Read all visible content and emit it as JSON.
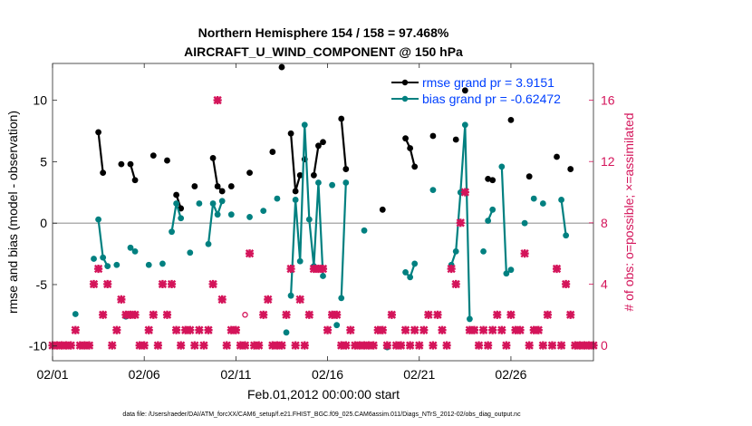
{
  "chart_data": {
    "type": "line",
    "title": "Northern Hemisphere 154 / 158 = 97.468%",
    "subtitle": "AIRCRAFT_U_WIND_COMPONENT @ 150 hPa",
    "xlabel": "Feb.01,2012 00:00:00 start",
    "ylabel": "rmse and bias (model - observation)",
    "y2label": "# of obs: o=possible; ×=assimilated",
    "xlim": [
      0,
      29.5
    ],
    "ylim": [
      -11.2,
      13
    ],
    "y2lim": [
      -1.0,
      18.4
    ],
    "x_ticks": [
      0,
      5,
      10,
      15,
      20,
      25
    ],
    "x_tick_labels": [
      "02/01",
      "02/06",
      "02/11",
      "02/16",
      "02/21",
      "02/26"
    ],
    "y_ticks": [
      -10,
      -5,
      0,
      5,
      10
    ],
    "y_tick_labels": [
      "-10",
      "-5",
      "0",
      "5",
      "10"
    ],
    "y2_ticks": [
      0,
      4,
      8,
      12,
      16
    ],
    "y2_tick_labels": [
      "0",
      "4",
      "8",
      "12",
      "16"
    ],
    "zero_line": 0,
    "grid": false,
    "legend_position": "top-right",
    "legend": [
      {
        "label": "rmse grand pr = 3.9151",
        "color": "#000000"
      },
      {
        "label": "bias grand pr = -0.62472",
        "color": "#008080"
      }
    ],
    "colors": {
      "rmse": "#000000",
      "bias": "#008080",
      "obs": "#d4145a",
      "zero": "#b0b0b0",
      "legend_text": "#0040ff"
    },
    "series": [
      {
        "name": "rmse",
        "axis": "left",
        "segments": [
          [
            [
              2.5,
              7.4
            ],
            [
              2.75,
              4.1
            ]
          ],
          [
            [
              3.75,
              4.8
            ]
          ],
          [
            [
              4.25,
              4.8
            ],
            [
              4.5,
              3.5
            ]
          ],
          [
            [
              5.5,
              5.5
            ]
          ],
          [
            [
              6.25,
              5.1
            ]
          ],
          [
            [
              6.75,
              2.3
            ],
            [
              7.0,
              1.2
            ]
          ],
          [
            [
              7.75,
              3.0
            ]
          ],
          [
            [
              8.75,
              5.3
            ],
            [
              9.0,
              3.0
            ],
            [
              9.25,
              2.6
            ]
          ],
          [
            [
              9.75,
              3.0
            ]
          ],
          [
            [
              10.75,
              4.1
            ]
          ],
          [
            [
              12.0,
              5.8
            ]
          ],
          [
            [
              12.5,
              12.7
            ]
          ],
          [
            [
              13.0,
              7.3
            ],
            [
              13.25,
              2.6
            ],
            [
              13.5,
              3.9
            ]
          ],
          [
            [
              13.75,
              5.2
            ]
          ],
          [
            [
              14.25,
              3.9
            ],
            [
              14.5,
              6.3
            ],
            [
              14.75,
              6.6
            ]
          ],
          [
            [
              15.75,
              8.5
            ],
            [
              16.0,
              4.4
            ]
          ],
          [
            [
              18.0,
              1.1
            ]
          ],
          [
            [
              19.25,
              6.9
            ],
            [
              19.5,
              6.1
            ],
            [
              19.75,
              4.6
            ]
          ],
          [
            [
              20.75,
              7.1
            ]
          ],
          [
            [
              22.0,
              6.8
            ]
          ],
          [
            [
              22.5,
              10.8
            ]
          ],
          [
            [
              23.75,
              3.6
            ],
            [
              24.0,
              3.5
            ]
          ],
          [
            [
              25.0,
              8.4
            ]
          ],
          [
            [
              26.0,
              3.8
            ]
          ],
          [
            [
              27.5,
              5.4
            ]
          ],
          [
            [
              28.25,
              4.4
            ]
          ]
        ]
      },
      {
        "name": "bias",
        "axis": "left",
        "segments": [
          [
            [
              1.25,
              -7.4
            ]
          ],
          [
            [
              2.25,
              -2.9
            ]
          ],
          [
            [
              2.5,
              0.3
            ],
            [
              2.75,
              -2.8
            ],
            [
              3.0,
              -3.5
            ]
          ],
          [
            [
              3.5,
              -3.4
            ]
          ],
          [
            [
              4.0,
              -7.6
            ]
          ],
          [
            [
              4.25,
              -2.0
            ],
            [
              4.5,
              -2.3
            ]
          ],
          [
            [
              5.25,
              -3.4
            ]
          ],
          [
            [
              6.0,
              -3.3
            ]
          ],
          [
            [
              6.5,
              -0.7
            ],
            [
              6.75,
              1.6
            ],
            [
              7.0,
              0.4
            ]
          ],
          [
            [
              7.5,
              -2.4
            ]
          ],
          [
            [
              8.0,
              1.6
            ]
          ],
          [
            [
              8.5,
              -1.7
            ],
            [
              8.75,
              1.6
            ],
            [
              9.0,
              0.7
            ],
            [
              9.25,
              1.8
            ]
          ],
          [
            [
              9.75,
              0.7
            ]
          ],
          [
            [
              10.75,
              0.5
            ]
          ],
          [
            [
              11.5,
              1.0
            ]
          ],
          [
            [
              12.25,
              2.0
            ]
          ],
          [
            [
              12.75,
              -8.9
            ]
          ],
          [
            [
              13.0,
              -5.9
            ],
            [
              13.25,
              1.9
            ],
            [
              13.5,
              -3.1
            ],
            [
              13.75,
              8.0
            ],
            [
              14.0,
              0.3
            ],
            [
              14.25,
              -3.5
            ],
            [
              14.5,
              3.3
            ],
            [
              14.75,
              -4.3
            ]
          ],
          [
            [
              15.25,
              3.1
            ]
          ],
          [
            [
              15.5,
              -8.3
            ]
          ],
          [
            [
              15.75,
              -6.1
            ],
            [
              16.0,
              3.3
            ]
          ],
          [
            [
              17.0,
              -0.6
            ]
          ],
          [
            [
              18.25,
              -10.1
            ]
          ],
          [
            [
              19.25,
              -4.0
            ],
            [
              19.5,
              -4.4
            ],
            [
              19.75,
              -3.3
            ]
          ],
          [
            [
              20.75,
              2.7
            ]
          ],
          [
            [
              21.75,
              -3.4
            ],
            [
              22.0,
              -2.3
            ],
            [
              22.25,
              2.5
            ],
            [
              22.5,
              8.0
            ],
            [
              22.75,
              -7.8
            ]
          ],
          [
            [
              23.5,
              -2.3
            ]
          ],
          [
            [
              23.75,
              0.2
            ],
            [
              24.0,
              1.1
            ]
          ],
          [
            [
              24.5,
              4.6
            ],
            [
              24.75,
              -4.1
            ],
            [
              25.0,
              -3.8
            ]
          ],
          [
            [
              25.75,
              0.0
            ]
          ],
          [
            [
              26.25,
              2.0
            ]
          ],
          [
            [
              26.75,
              1.6
            ]
          ],
          [
            [
              27.75,
              1.9
            ],
            [
              28.0,
              -1.0
            ]
          ]
        ]
      },
      {
        "name": "assimilated",
        "axis": "right",
        "marker": "x",
        "points": [
          [
            0.0,
            0
          ],
          [
            0.25,
            0
          ],
          [
            0.5,
            0
          ],
          [
            0.75,
            0
          ],
          [
            1.0,
            0
          ],
          [
            1.25,
            1
          ],
          [
            1.5,
            0
          ],
          [
            1.75,
            0
          ],
          [
            2.0,
            0
          ],
          [
            2.25,
            4
          ],
          [
            2.5,
            5
          ],
          [
            2.75,
            2
          ],
          [
            3.0,
            4
          ],
          [
            3.25,
            0
          ],
          [
            3.5,
            1
          ],
          [
            3.75,
            3
          ],
          [
            4.0,
            2
          ],
          [
            4.25,
            2
          ],
          [
            4.5,
            2
          ],
          [
            4.75,
            0
          ],
          [
            5.0,
            0
          ],
          [
            5.25,
            1
          ],
          [
            5.5,
            2
          ],
          [
            5.75,
            0
          ],
          [
            6.0,
            4
          ],
          [
            6.25,
            2
          ],
          [
            6.5,
            4
          ],
          [
            6.75,
            1
          ],
          [
            7.0,
            0
          ],
          [
            7.25,
            1
          ],
          [
            7.5,
            1
          ],
          [
            7.75,
            0
          ],
          [
            8.0,
            1
          ],
          [
            8.25,
            0
          ],
          [
            8.5,
            1
          ],
          [
            8.75,
            4
          ],
          [
            9.0,
            16
          ],
          [
            9.25,
            3
          ],
          [
            9.5,
            0
          ],
          [
            9.75,
            1
          ],
          [
            10.0,
            1
          ],
          [
            10.25,
            0
          ],
          [
            10.5,
            0
          ],
          [
            10.75,
            6
          ],
          [
            11.0,
            0
          ],
          [
            11.25,
            0
          ],
          [
            11.5,
            2
          ],
          [
            11.75,
            3
          ],
          [
            12.0,
            0
          ],
          [
            12.25,
            0
          ],
          [
            12.5,
            0
          ],
          [
            12.75,
            2
          ],
          [
            13.0,
            5
          ],
          [
            13.25,
            0
          ],
          [
            13.5,
            3
          ],
          [
            13.75,
            0
          ],
          [
            14.0,
            2
          ],
          [
            14.25,
            5
          ],
          [
            14.5,
            5
          ],
          [
            14.75,
            5
          ],
          [
            15.0,
            1
          ],
          [
            15.25,
            2
          ],
          [
            15.5,
            2
          ],
          [
            15.75,
            0
          ],
          [
            16.0,
            0
          ],
          [
            16.25,
            1
          ],
          [
            16.5,
            0
          ],
          [
            16.75,
            0
          ],
          [
            17.0,
            0
          ],
          [
            17.25,
            0
          ],
          [
            17.5,
            0
          ],
          [
            17.75,
            1
          ],
          [
            18.0,
            1
          ],
          [
            18.25,
            0
          ],
          [
            18.5,
            2
          ],
          [
            18.75,
            0
          ],
          [
            19.0,
            0
          ],
          [
            19.25,
            1
          ],
          [
            19.5,
            0
          ],
          [
            19.75,
            1
          ],
          [
            20.0,
            0
          ],
          [
            20.25,
            1
          ],
          [
            20.5,
            2
          ],
          [
            20.75,
            0
          ],
          [
            21.0,
            2
          ],
          [
            21.25,
            1
          ],
          [
            21.5,
            0
          ],
          [
            21.75,
            5
          ],
          [
            22.0,
            4
          ],
          [
            22.25,
            8
          ],
          [
            22.5,
            10
          ],
          [
            22.75,
            1
          ],
          [
            23.0,
            1
          ],
          [
            23.25,
            0
          ],
          [
            23.5,
            1
          ],
          [
            23.75,
            0
          ],
          [
            24.0,
            1
          ],
          [
            24.25,
            2
          ],
          [
            24.5,
            1
          ],
          [
            24.75,
            0
          ],
          [
            25.0,
            2
          ],
          [
            25.25,
            1
          ],
          [
            25.5,
            1
          ],
          [
            25.75,
            6
          ],
          [
            26.0,
            0
          ],
          [
            26.25,
            1
          ],
          [
            26.5,
            1
          ],
          [
            26.75,
            0
          ],
          [
            27.0,
            2
          ],
          [
            27.25,
            0
          ],
          [
            27.5,
            5
          ],
          [
            27.75,
            0
          ],
          [
            28.0,
            4
          ],
          [
            28.25,
            2
          ],
          [
            28.5,
            0
          ],
          [
            28.75,
            0
          ],
          [
            29.0,
            0
          ],
          [
            29.25,
            0
          ],
          [
            29.5,
            0
          ]
        ]
      },
      {
        "name": "possible",
        "axis": "right",
        "marker": "o",
        "points": [
          [
            10.5,
            2
          ],
          [
            26.25,
            1
          ]
        ]
      }
    ]
  },
  "footnote": "data file: /Users/raeder/DAI/ATM_forcXX/CAM6_setup/f.e21.FHIST_BGC.f09_025.CAM6assim.011/Diags_NTrS_2012-02/obs_diag_output.nc"
}
